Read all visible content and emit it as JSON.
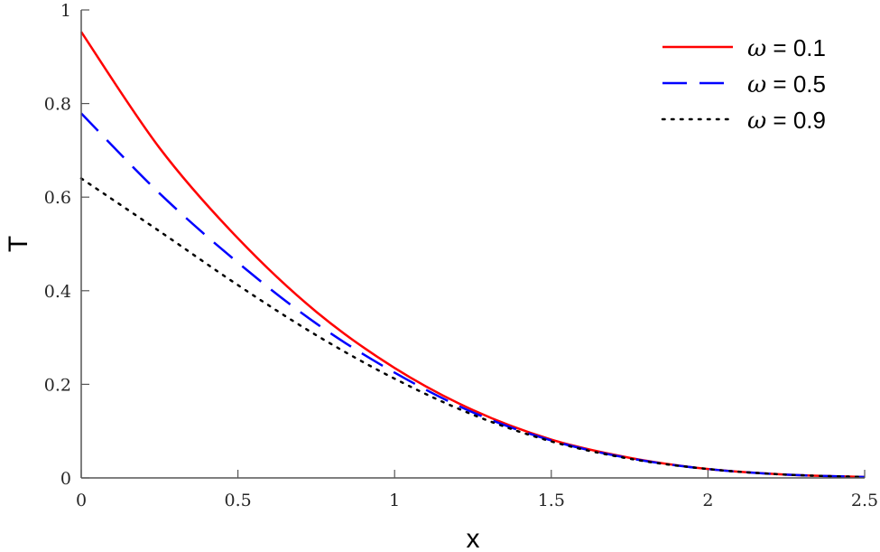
{
  "chart_data": {
    "type": "line",
    "title": "",
    "xlabel": "x",
    "ylabel": "T",
    "xlim": [
      0,
      2.5
    ],
    "ylim": [
      0,
      1
    ],
    "xticks": [
      0,
      0.5,
      1,
      1.5,
      2,
      2.5
    ],
    "xtick_labels": [
      "0",
      "0.5",
      "1",
      "1.5",
      "2",
      "2.5"
    ],
    "yticks": [
      0,
      0.2,
      0.4,
      0.6,
      0.8,
      1
    ],
    "ytick_labels": [
      "0",
      "0.2",
      "0.4",
      "0.6",
      "0.8",
      "1"
    ],
    "grid": false,
    "legend_position": "upper right",
    "x": [
      0,
      0.25,
      0.5,
      0.75,
      1.0,
      1.25,
      1.5,
      1.75,
      2.0,
      2.25,
      2.5
    ],
    "series": [
      {
        "name": "ω = 0.1",
        "color": "#ff0000",
        "style": "solid",
        "values": [
          0.953,
          0.705,
          0.512,
          0.355,
          0.235,
          0.145,
          0.082,
          0.043,
          0.019,
          0.007,
          0.002
        ]
      },
      {
        "name": "ω = 0.5",
        "color": "#0000ff",
        "style": "dashed",
        "values": [
          0.779,
          0.608,
          0.46,
          0.33,
          0.225,
          0.14,
          0.08,
          0.042,
          0.019,
          0.007,
          0.002
        ]
      },
      {
        "name": "ω = 0.9",
        "color": "#000000",
        "style": "dotted",
        "values": [
          0.64,
          0.527,
          0.412,
          0.305,
          0.212,
          0.135,
          0.078,
          0.041,
          0.019,
          0.007,
          0.002
        ]
      }
    ]
  },
  "legend": {
    "items": [
      {
        "symbol": "ω",
        "text": " = 0.1"
      },
      {
        "symbol": "ω",
        "text": " = 0.5"
      },
      {
        "symbol": "ω",
        "text": " = 0.9"
      }
    ]
  },
  "axes": {
    "xlabel": "x",
    "ylabel": "T"
  }
}
